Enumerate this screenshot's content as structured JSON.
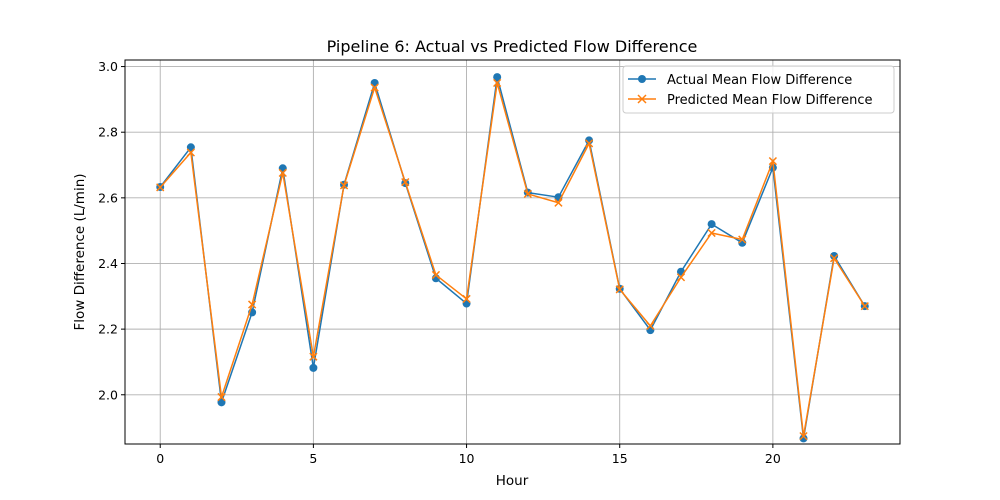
{
  "chart_data": {
    "type": "line",
    "title": "Pipeline 6: Actual vs Predicted Flow Difference",
    "xlabel": "Hour",
    "ylabel": "Flow Difference (L/min)",
    "xlim": [
      -1.15,
      24.15
    ],
    "ylim": [
      1.85,
      3.02
    ],
    "grid": true,
    "legend_position": "upper right",
    "x": [
      0,
      1,
      2,
      3,
      4,
      5,
      6,
      7,
      8,
      9,
      10,
      11,
      12,
      13,
      14,
      15,
      16,
      17,
      18,
      19,
      20,
      21,
      22,
      23
    ],
    "x_ticks": [
      0,
      5,
      10,
      15,
      20
    ],
    "y_ticks": [
      2.0,
      2.2,
      2.4,
      2.6,
      2.8,
      3.0
    ],
    "x_tick_labels": [
      "0",
      "5",
      "10",
      "15",
      "20"
    ],
    "y_tick_labels": [
      "2.0",
      "2.2",
      "2.4",
      "2.6",
      "2.8",
      "3.0"
    ],
    "series": [
      {
        "name": "Actual Mean Flow Difference",
        "color": "#1f77b4",
        "marker": "circle",
        "values": [
          2.633,
          2.754,
          1.977,
          2.251,
          2.69,
          2.082,
          2.64,
          2.95,
          2.645,
          2.355,
          2.278,
          2.968,
          2.616,
          2.602,
          2.775,
          2.323,
          2.197,
          2.375,
          2.52,
          2.463,
          2.692,
          1.867,
          2.423,
          2.27
        ]
      },
      {
        "name": "Predicted Mean Flow Difference",
        "color": "#ff7f0e",
        "marker": "x",
        "values": [
          2.632,
          2.738,
          1.993,
          2.275,
          2.676,
          2.116,
          2.638,
          2.936,
          2.648,
          2.365,
          2.292,
          2.95,
          2.612,
          2.585,
          2.766,
          2.321,
          2.21,
          2.358,
          2.493,
          2.473,
          2.712,
          1.874,
          2.416,
          2.27
        ]
      }
    ]
  }
}
